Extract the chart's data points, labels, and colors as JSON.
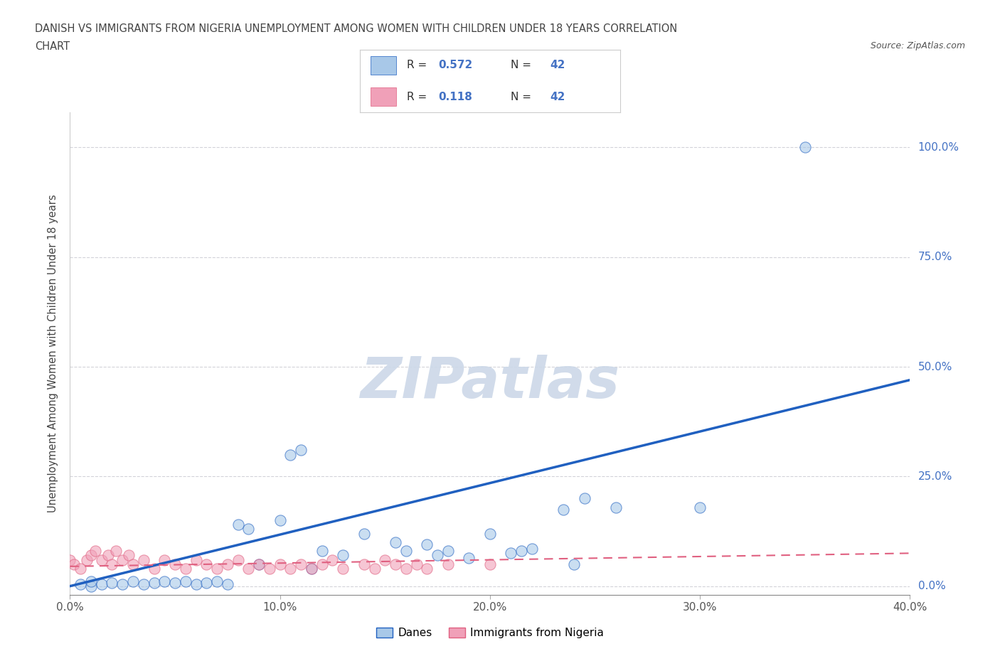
{
  "title_line1": "DANISH VS IMMIGRANTS FROM NIGERIA UNEMPLOYMENT AMONG WOMEN WITH CHILDREN UNDER 18 YEARS CORRELATION",
  "title_line2": "CHART",
  "source_text": "Source: ZipAtlas.com",
  "ylabel": "Unemployment Among Women with Children Under 18 years",
  "xlabel": "",
  "legend_entries": [
    "Danes",
    "Immigrants from Nigeria"
  ],
  "r_danes": 0.572,
  "n_danes": 42,
  "r_nigeria": 0.118,
  "n_nigeria": 42,
  "color_danes": "#a8c8e8",
  "color_nigeria": "#f0a0b8",
  "color_danes_line": "#2060c0",
  "color_nigeria_line": "#e06080",
  "xlim": [
    0.0,
    0.4
  ],
  "ylim": [
    -0.02,
    1.08
  ],
  "yticks": [
    0.0,
    0.25,
    0.5,
    0.75,
    1.0
  ],
  "ytick_labels": [
    "0.0%",
    "25.0%",
    "50.0%",
    "75.0%",
    "100.0%"
  ],
  "xticks": [
    0.0,
    0.1,
    0.2,
    0.3,
    0.4
  ],
  "xtick_labels": [
    "0.0%",
    "10.0%",
    "20.0%",
    "30.0%",
    "40.0%"
  ],
  "danes_x": [
    0.005,
    0.01,
    0.01,
    0.015,
    0.02,
    0.025,
    0.03,
    0.035,
    0.04,
    0.045,
    0.05,
    0.055,
    0.06,
    0.065,
    0.07,
    0.075,
    0.08,
    0.085,
    0.09,
    0.1,
    0.105,
    0.11,
    0.115,
    0.12,
    0.13,
    0.14,
    0.155,
    0.16,
    0.17,
    0.175,
    0.18,
    0.19,
    0.2,
    0.21,
    0.215,
    0.22,
    0.235,
    0.24,
    0.245,
    0.26,
    0.3,
    0.35
  ],
  "danes_y": [
    0.005,
    0.0,
    0.01,
    0.005,
    0.008,
    0.005,
    0.01,
    0.005,
    0.008,
    0.01,
    0.008,
    0.01,
    0.005,
    0.008,
    0.01,
    0.005,
    0.14,
    0.13,
    0.05,
    0.15,
    0.3,
    0.31,
    0.04,
    0.08,
    0.07,
    0.12,
    0.1,
    0.08,
    0.095,
    0.07,
    0.08,
    0.065,
    0.12,
    0.075,
    0.08,
    0.085,
    0.175,
    0.05,
    0.2,
    0.18,
    0.18,
    1.0
  ],
  "nigeria_x": [
    0.0,
    0.002,
    0.005,
    0.008,
    0.01,
    0.012,
    0.015,
    0.018,
    0.02,
    0.022,
    0.025,
    0.028,
    0.03,
    0.035,
    0.04,
    0.045,
    0.05,
    0.055,
    0.06,
    0.065,
    0.07,
    0.075,
    0.08,
    0.085,
    0.09,
    0.095,
    0.1,
    0.105,
    0.11,
    0.115,
    0.12,
    0.125,
    0.13,
    0.14,
    0.145,
    0.15,
    0.155,
    0.16,
    0.165,
    0.17,
    0.18,
    0.2
  ],
  "nigeria_y": [
    0.06,
    0.05,
    0.04,
    0.06,
    0.07,
    0.08,
    0.06,
    0.07,
    0.05,
    0.08,
    0.06,
    0.07,
    0.05,
    0.06,
    0.04,
    0.06,
    0.05,
    0.04,
    0.06,
    0.05,
    0.04,
    0.05,
    0.06,
    0.04,
    0.05,
    0.04,
    0.05,
    0.04,
    0.05,
    0.04,
    0.05,
    0.06,
    0.04,
    0.05,
    0.04,
    0.06,
    0.05,
    0.04,
    0.05,
    0.04,
    0.05,
    0.05
  ],
  "danes_line_x": [
    0.0,
    0.4
  ],
  "danes_line_y": [
    0.0,
    0.47
  ],
  "nigeria_line_x": [
    0.0,
    0.4
  ],
  "nigeria_line_y": [
    0.045,
    0.075
  ],
  "background_color": "#ffffff",
  "grid_color": "#c8c8d0",
  "watermark_text": "ZIPatlas",
  "watermark_color": "#ccd8e8"
}
